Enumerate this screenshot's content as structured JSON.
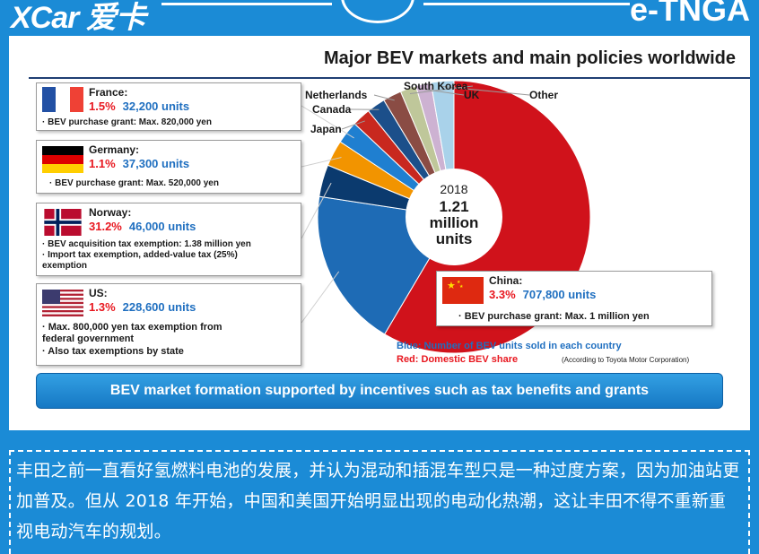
{
  "header": {
    "brand_left": "XCar 爱卡",
    "brand_right": "e-TNGA"
  },
  "slide": {
    "title": "Major BEV markets and main policies worldwide",
    "center_year": "2018",
    "center_total_line1": "1.21",
    "center_total_line2": "million",
    "center_total_line3": "units",
    "legend_blue": "Blue: Number of BEV units sold in each country",
    "legend_red": "Red: Domestic BEV share",
    "source_note": "(According to Toyota Motor Corporation)",
    "banner": "BEV market formation supported by incentives such as tax benefits and grants"
  },
  "countries": [
    {
      "name": "France:",
      "share": "1.5%",
      "units": "32,200 units",
      "policies": [
        "· BEV purchase grant: Max. 820,000 yen"
      ]
    },
    {
      "name": "Germany:",
      "share": "1.1%",
      "units": "37,300 units",
      "policies": [
        "· BEV purchase grant: Max. 520,000 yen"
      ]
    },
    {
      "name": "Norway:",
      "share": "31.2%",
      "units": "46,000 units",
      "policies": [
        "· BEV acquisition tax exemption: 1.38 million yen",
        "· Import tax exemption, added-value tax (25%)",
        "  exemption"
      ]
    },
    {
      "name": "US:",
      "share": "1.3%",
      "units": "228,600 units",
      "policies": [
        "· Max. 800,000 yen tax exemption from",
        "  federal government",
        "· Also tax exemptions by state"
      ]
    },
    {
      "name": "China:",
      "share": "3.3%",
      "units": "707,800 units",
      "policies": [
        "· BEV purchase grant: Max. 1 million yen"
      ]
    }
  ],
  "chart_data": {
    "type": "pie",
    "title": "Major BEV markets and main policies worldwide",
    "center_label": "2018 1.21 million units",
    "total_units": 1210000,
    "categories": [
      "China",
      "US",
      "Norway",
      "Germany",
      "France",
      "Japan",
      "Canada",
      "Netherlands",
      "South Korea",
      "UK",
      "Other"
    ],
    "units": [
      707800,
      228600,
      46000,
      37300,
      32200,
      null,
      null,
      null,
      null,
      null,
      null
    ],
    "slice_fraction_estimate": [
      0.585,
      0.189,
      0.038,
      0.031,
      0.027,
      0.022,
      0.022,
      0.022,
      0.019,
      0.018,
      0.027
    ],
    "domestic_share_pct": [
      3.3,
      1.3,
      31.2,
      1.1,
      1.5,
      null,
      null,
      null,
      null,
      null,
      null
    ],
    "colors": [
      "#d0121b",
      "#1e6bb5",
      "#0b3a6e",
      "#f29400",
      "#1f7fd0",
      "#c8281f",
      "#1c4f8a",
      "#8a4c44",
      "#bfc79a",
      "#cdb2d2",
      "#a9d2ea"
    ]
  },
  "caption": {
    "text": "丰田之前一直看好氢燃料电池的发展，并认为混动和插混车型只是一种过度方案，因为加油站更加普及。但从 2018 年开始，中国和美国开始明显出现的电动化热潮，这让丰田不得不重新重视电动汽车的规划。"
  }
}
